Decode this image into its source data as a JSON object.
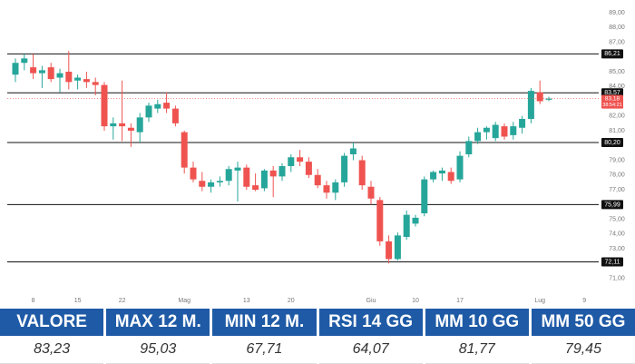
{
  "chart_data": {
    "type": "candlestick",
    "categories": [
      null,
      null,
      "8",
      null,
      null,
      null,
      null,
      "15",
      null,
      null,
      null,
      null,
      "22",
      null,
      null,
      null,
      null,
      null,
      null,
      "Mag",
      null,
      null,
      null,
      null,
      null,
      null,
      "13",
      null,
      null,
      null,
      null,
      "20",
      null,
      null,
      null,
      null,
      null,
      null,
      null,
      null,
      "Giu",
      null,
      null,
      null,
      null,
      "10",
      null,
      null,
      null,
      null,
      "17",
      null,
      null,
      null,
      null,
      null,
      null,
      null,
      null,
      "Lug",
      null,
      null,
      null,
      null,
      "9"
    ],
    "open": [
      84.8,
      85.6,
      85.3,
      84.9,
      85.3,
      84.6,
      85.0,
      84.4,
      84.5,
      84.3,
      84.1,
      81.3,
      81.5,
      81.2,
      80.9,
      81.9,
      82.5,
      82.9,
      82.5,
      80.9,
      78.5,
      77.6,
      77.2,
      77.5,
      77.6,
      78.3,
      78.5,
      77.3,
      77.1,
      78.3,
      77.9,
      78.6,
      79.2,
      78.9,
      78.0,
      77.3,
      76.8,
      77.5,
      79.4,
      79.0,
      77.2,
      76.3,
      73.5,
      72.3,
      73.8,
      74.7,
      75.4,
      77.7,
      78.1,
      78.2,
      77.7,
      79.4,
      80.3,
      80.9,
      80.5,
      81.3,
      80.7,
      81.2,
      81.8,
      83.6,
      83.1,
      null,
      null,
      null,
      null
    ],
    "high": [
      85.9,
      86.2,
      86.2,
      85.4,
      85.6,
      85.2,
      86.4,
      84.8,
      85.0,
      84.6,
      84.3,
      81.9,
      84.4,
      81.5,
      82.2,
      82.9,
      83.1,
      83.6,
      82.7,
      81.0,
      78.9,
      78.2,
      77.7,
      77.9,
      78.6,
      78.9,
      78.7,
      78.1,
      78.4,
      78.6,
      78.8,
      79.4,
      79.7,
      79.2,
      78.4,
      77.6,
      77.7,
      79.5,
      80.2,
      79.3,
      77.6,
      76.5,
      73.9,
      74.1,
      75.6,
      75.3,
      77.9,
      78.3,
      78.5,
      78.5,
      79.6,
      80.6,
      81.2,
      81.3,
      81.6,
      81.5,
      81.6,
      82.0,
      83.9,
      84.4,
      83.3,
      null,
      null,
      null,
      null
    ],
    "low": [
      84.3,
      85.1,
      84.5,
      83.9,
      84.3,
      83.6,
      83.8,
      83.8,
      83.9,
      83.4,
      81.0,
      80.4,
      80.3,
      79.9,
      80.2,
      81.6,
      82.2,
      82.2,
      81.3,
      78.1,
      77.5,
      76.9,
      76.8,
      77.2,
      77.3,
      76.2,
      77.0,
      76.9,
      76.9,
      76.5,
      77.6,
      78.2,
      78.6,
      77.8,
      77.1,
      76.4,
      76.3,
      77.2,
      79.0,
      77.0,
      76.0,
      73.2,
      72.0,
      72.2,
      73.6,
      74.5,
      75.2,
      77.5,
      77.6,
      77.4,
      77.5,
      79.2,
      80.1,
      80.4,
      80.3,
      80.4,
      80.4,
      80.8,
      81.5,
      82.8,
      83.0,
      null,
      null,
      null,
      null
    ],
    "close": [
      85.6,
      85.9,
      84.9,
      85.1,
      84.5,
      84.9,
      84.3,
      84.6,
      84.3,
      84.1,
      81.3,
      81.5,
      81.3,
      81.0,
      81.9,
      82.7,
      82.8,
      82.5,
      81.5,
      78.5,
      77.7,
      77.2,
      77.5,
      77.6,
      78.4,
      78.5,
      77.2,
      77.0,
      78.3,
      77.9,
      78.6,
      79.2,
      78.9,
      78.0,
      77.3,
      76.8,
      77.5,
      79.3,
      79.8,
      77.3,
      76.4,
      73.5,
      72.3,
      73.9,
      75.3,
      75.1,
      77.7,
      78.2,
      78.3,
      77.6,
      79.3,
      80.3,
      80.9,
      81.2,
      81.4,
      80.6,
      81.3,
      81.8,
      83.7,
      83.0,
      83.18,
      null,
      null,
      null,
      null
    ],
    "up_color": "#26a69a",
    "down_color": "#ef5350",
    "ylim": [
      70.5,
      89.6
    ],
    "yticks": [
      {
        "value": 89,
        "label": "89,00"
      },
      {
        "value": 88,
        "label": "88,00"
      },
      {
        "value": 87,
        "label": "87,00"
      },
      {
        "value": 85,
        "label": "85,00"
      },
      {
        "value": 84,
        "label": "84,00"
      },
      {
        "value": 82,
        "label": "82,00"
      },
      {
        "value": 81,
        "label": "81,00"
      },
      {
        "value": 79,
        "label": "79,00"
      },
      {
        "value": 78,
        "label": "78,00"
      },
      {
        "value": 77,
        "label": "77,00"
      },
      {
        "value": 75,
        "label": "75,00"
      },
      {
        "value": 74,
        "label": "74,00"
      },
      {
        "value": 73,
        "label": "73,00"
      },
      {
        "value": 71,
        "label": "71,00"
      }
    ],
    "levels": [
      {
        "value": 86.21,
        "label": "86,21"
      },
      {
        "value": 83.57,
        "label": "83,57"
      },
      {
        "value": 80.2,
        "label": "80,20"
      },
      {
        "value": 75.99,
        "label": "75,99"
      },
      {
        "value": 72.11,
        "label": "72,11"
      }
    ],
    "last_price": {
      "value": 83.18,
      "label": "83,18"
    },
    "countdown": "38:54:21"
  },
  "table": {
    "headers": [
      "VALORE",
      "MAX 12 M.",
      "MIN 12 M.",
      "RSI 14 GG",
      "MM 10 GG",
      "MM 50 GG"
    ],
    "rows": [
      [
        "83,23",
        "95,03",
        "67,71",
        "64,07",
        "81,77",
        "79,45"
      ]
    ]
  }
}
